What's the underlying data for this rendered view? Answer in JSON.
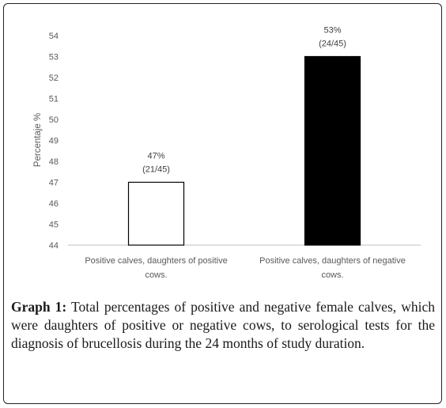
{
  "chart_data": {
    "type": "bar",
    "categories": [
      "Positive calves, daughters of positive cows.",
      "Positive calves, daughters of negative cows."
    ],
    "category_lines": [
      [
        "Positive calves, daughters of positive",
        "cows."
      ],
      [
        "Positive calves, daughters of negative",
        "cows."
      ]
    ],
    "values": [
      47,
      53
    ],
    "bar_colors": [
      "#ffffff",
      "#000000"
    ],
    "data_labels": [
      [
        "47%",
        "(21/45)"
      ],
      [
        "53%",
        "(24/45)"
      ]
    ],
    "ylabel": "Percentaje %",
    "ylim": [
      44,
      54
    ],
    "yticks": [
      "44",
      "45",
      "46",
      "47",
      "48",
      "49",
      "50",
      "51",
      "52",
      "53",
      "54"
    ],
    "grid": false,
    "legend": "none"
  },
  "caption": {
    "lead": "Graph 1:",
    "text": " Total percentages of positive and negative female calves, which were daughters of positive or negative cows, to serological tests for the diagnosis of brucellosis during the 24 months of study duration."
  }
}
